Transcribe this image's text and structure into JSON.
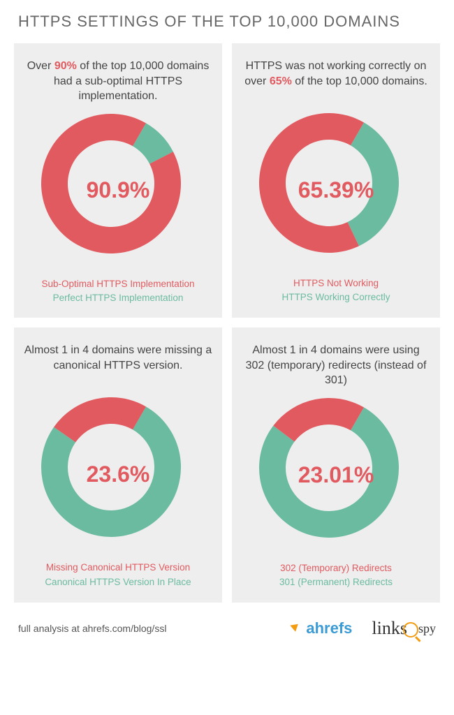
{
  "title": "HTTPS SETTINGS OF THE TOP 10,000 DOMAINS",
  "colors": {
    "red": "#e15a5f",
    "teal": "#6bbba1",
    "panel_bg": "#eeeeee",
    "title_color": "#666666",
    "desc_color": "#444444"
  },
  "donut_style": {
    "outer_radius": 100,
    "inner_radius": 62,
    "start_angle_deg": 30,
    "center_font_size": 32,
    "center_font_weight": 700
  },
  "panels": [
    {
      "desc_pre": "Over ",
      "desc_hl": "90%",
      "desc_post": " of the top 10,000 domains had a sub-optimal HTTPS implementation.",
      "hl_color": "#e15a5f",
      "value_percent": 90.9,
      "center_text": "90.9%",
      "center_color": "#e15a5f",
      "primary_color": "#e15a5f",
      "secondary_color": "#6bbba1",
      "legend_primary": "Sub-Optimal HTTPS Implementation",
      "legend_secondary": "Perfect HTTPS Implementation"
    },
    {
      "desc_pre": "HTTPS was not working correctly on over ",
      "desc_hl": "65%",
      "desc_post": " of the top 10,000 domains.",
      "hl_color": "#e15a5f",
      "value_percent": 65.39,
      "center_text": "65.39%",
      "center_color": "#e15a5f",
      "primary_color": "#e15a5f",
      "secondary_color": "#6bbba1",
      "legend_primary": "HTTPS Not Working",
      "legend_secondary": "HTTPS Working Correctly"
    },
    {
      "desc_pre": "Almost 1 in 4 domains were missing a canonical HTTPS version.",
      "desc_hl": "",
      "desc_post": "",
      "hl_color": "#e15a5f",
      "value_percent": 23.6,
      "center_text": "23.6%",
      "center_color": "#e15a5f",
      "primary_color": "#e15a5f",
      "secondary_color": "#6bbba1",
      "legend_primary": "Missing Canonical HTTPS Version",
      "legend_secondary": "Canonical HTTPS Version In Place"
    },
    {
      "desc_pre": "Almost 1 in 4 domains were using 302 (temporary) redirects (instead of 301)",
      "desc_hl": "",
      "desc_post": "",
      "hl_color": "#e15a5f",
      "value_percent": 23.01,
      "center_text": "23.01%",
      "center_color": "#e15a5f",
      "primary_color": "#e15a5f",
      "secondary_color": "#6bbba1",
      "legend_primary": "302 (Temporary) Redirects",
      "legend_secondary": "301 (Permanent) Redirects"
    }
  ],
  "footer": {
    "text": "full analysis at ahrefs.com/blog/ssl",
    "logo_ahrefs": "ahrefs",
    "logo_linksspy_main": "links",
    "logo_linksspy_sub": "spy"
  }
}
